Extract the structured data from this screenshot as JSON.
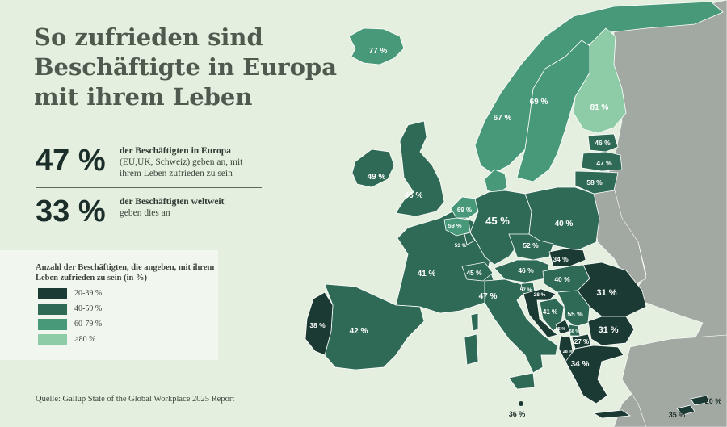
{
  "title": {
    "line1": "So zufrieden sind",
    "line2": "Beschäftigte in Europa",
    "line3": "mit ihrem Leben"
  },
  "stats": [
    {
      "value": "47 %",
      "bold": "der Beschäftigten in Europa",
      "text": "(EU,UK, Schweiz) geben an, mit ihrem Leben zufrieden zu sein"
    },
    {
      "value": "33 %",
      "bold": "der Beschäftigten weltweit",
      "text": "geben dies an"
    }
  ],
  "legend": {
    "title": "Anzahl der Beschäftigten, die angeben, mit ihrem Leben zufrieden zu sein (in %)",
    "items": [
      {
        "label": "20-39 %",
        "color": "#1b3a33"
      },
      {
        "label": "40-59 %",
        "color": "#2f6a57"
      },
      {
        "label": "60-79 %",
        "color": "#48987a"
      },
      {
        "label": ">80 %",
        "color": "#8dcca6"
      }
    ]
  },
  "source": "Quelle: Gallup State of the Global Workplace 2025 Report",
  "colors": {
    "background": "#e4efe0",
    "non_surveyed": "#a2a9a3",
    "water": "#e4efe0"
  },
  "countries": {
    "iceland": "77 %",
    "sweden": "69 %",
    "norway": "67 %",
    "finland": "81 %",
    "estonia": "46 %",
    "latvia": "47 %",
    "lithuania": "58 %",
    "ireland": "49 %",
    "uk": "46 %",
    "netherlands": "69 %",
    "belgium": "59 %",
    "luxembourg": "53 %",
    "germany": "45 %",
    "poland": "40 %",
    "czechia": "52 %",
    "slovakia": "34 %",
    "austria": "46 %",
    "hungary": "40 %",
    "switzerland": "45 %",
    "france": "41 %",
    "slovenia": "57 %",
    "croatia": "28 %",
    "bosnia": "41 %",
    "serbia": "55 %",
    "montenegro": "35 %",
    "kosovo": "56 %",
    "north_macedonia": "27 %",
    "albania": "28 %",
    "romania": "31 %",
    "bulgaria": "31 %",
    "greece": "34 %",
    "italy": "47 %",
    "spain": "42 %",
    "portugal": "38 %",
    "malta": "36 %",
    "cyprus": "35 %",
    "north_cyprus": "20 %"
  }
}
